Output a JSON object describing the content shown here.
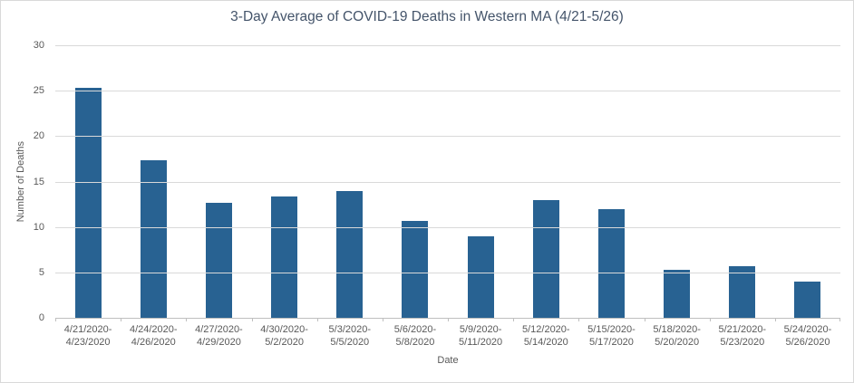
{
  "chart_data": {
    "type": "bar",
    "title": "3-Day Average of COVID-19 Deaths in Western MA (4/21-5/26)",
    "xlabel": "Date",
    "ylabel": "Number  of Deaths",
    "ylim": [
      0,
      30
    ],
    "ytick_step": 5,
    "ytick_labels": [
      "0",
      "5",
      "10",
      "15",
      "20",
      "25",
      "30"
    ],
    "grid": true,
    "legend": "none",
    "bar_color": "#286292",
    "categories": [
      "4/21/2020-4/23/2020",
      "4/24/2020-4/26/2020",
      "4/27/2020-4/29/2020",
      "4/30/2020-5/2/2020",
      "5/3/2020-5/5/2020",
      "5/6/2020-5/8/2020",
      "5/9/2020-5/11/2020",
      "5/12/2020-5/14/2020",
      "5/15/2020-5/17/2020",
      "5/18/2020-5/20/2020",
      "5/21/2020-5/23/2020",
      "5/24/2020-5/26/2020"
    ],
    "values": [
      25.33,
      17.33,
      12.67,
      13.33,
      14.0,
      10.67,
      9.0,
      13.0,
      12.0,
      5.33,
      5.67,
      4.0
    ]
  },
  "colors": {
    "title_text": "#44546a",
    "axis_text": "#595959",
    "gridline": "#d9d9d9",
    "axis_line": "#bfbfbf",
    "bar": "#286292",
    "background": "#ffffff"
  }
}
